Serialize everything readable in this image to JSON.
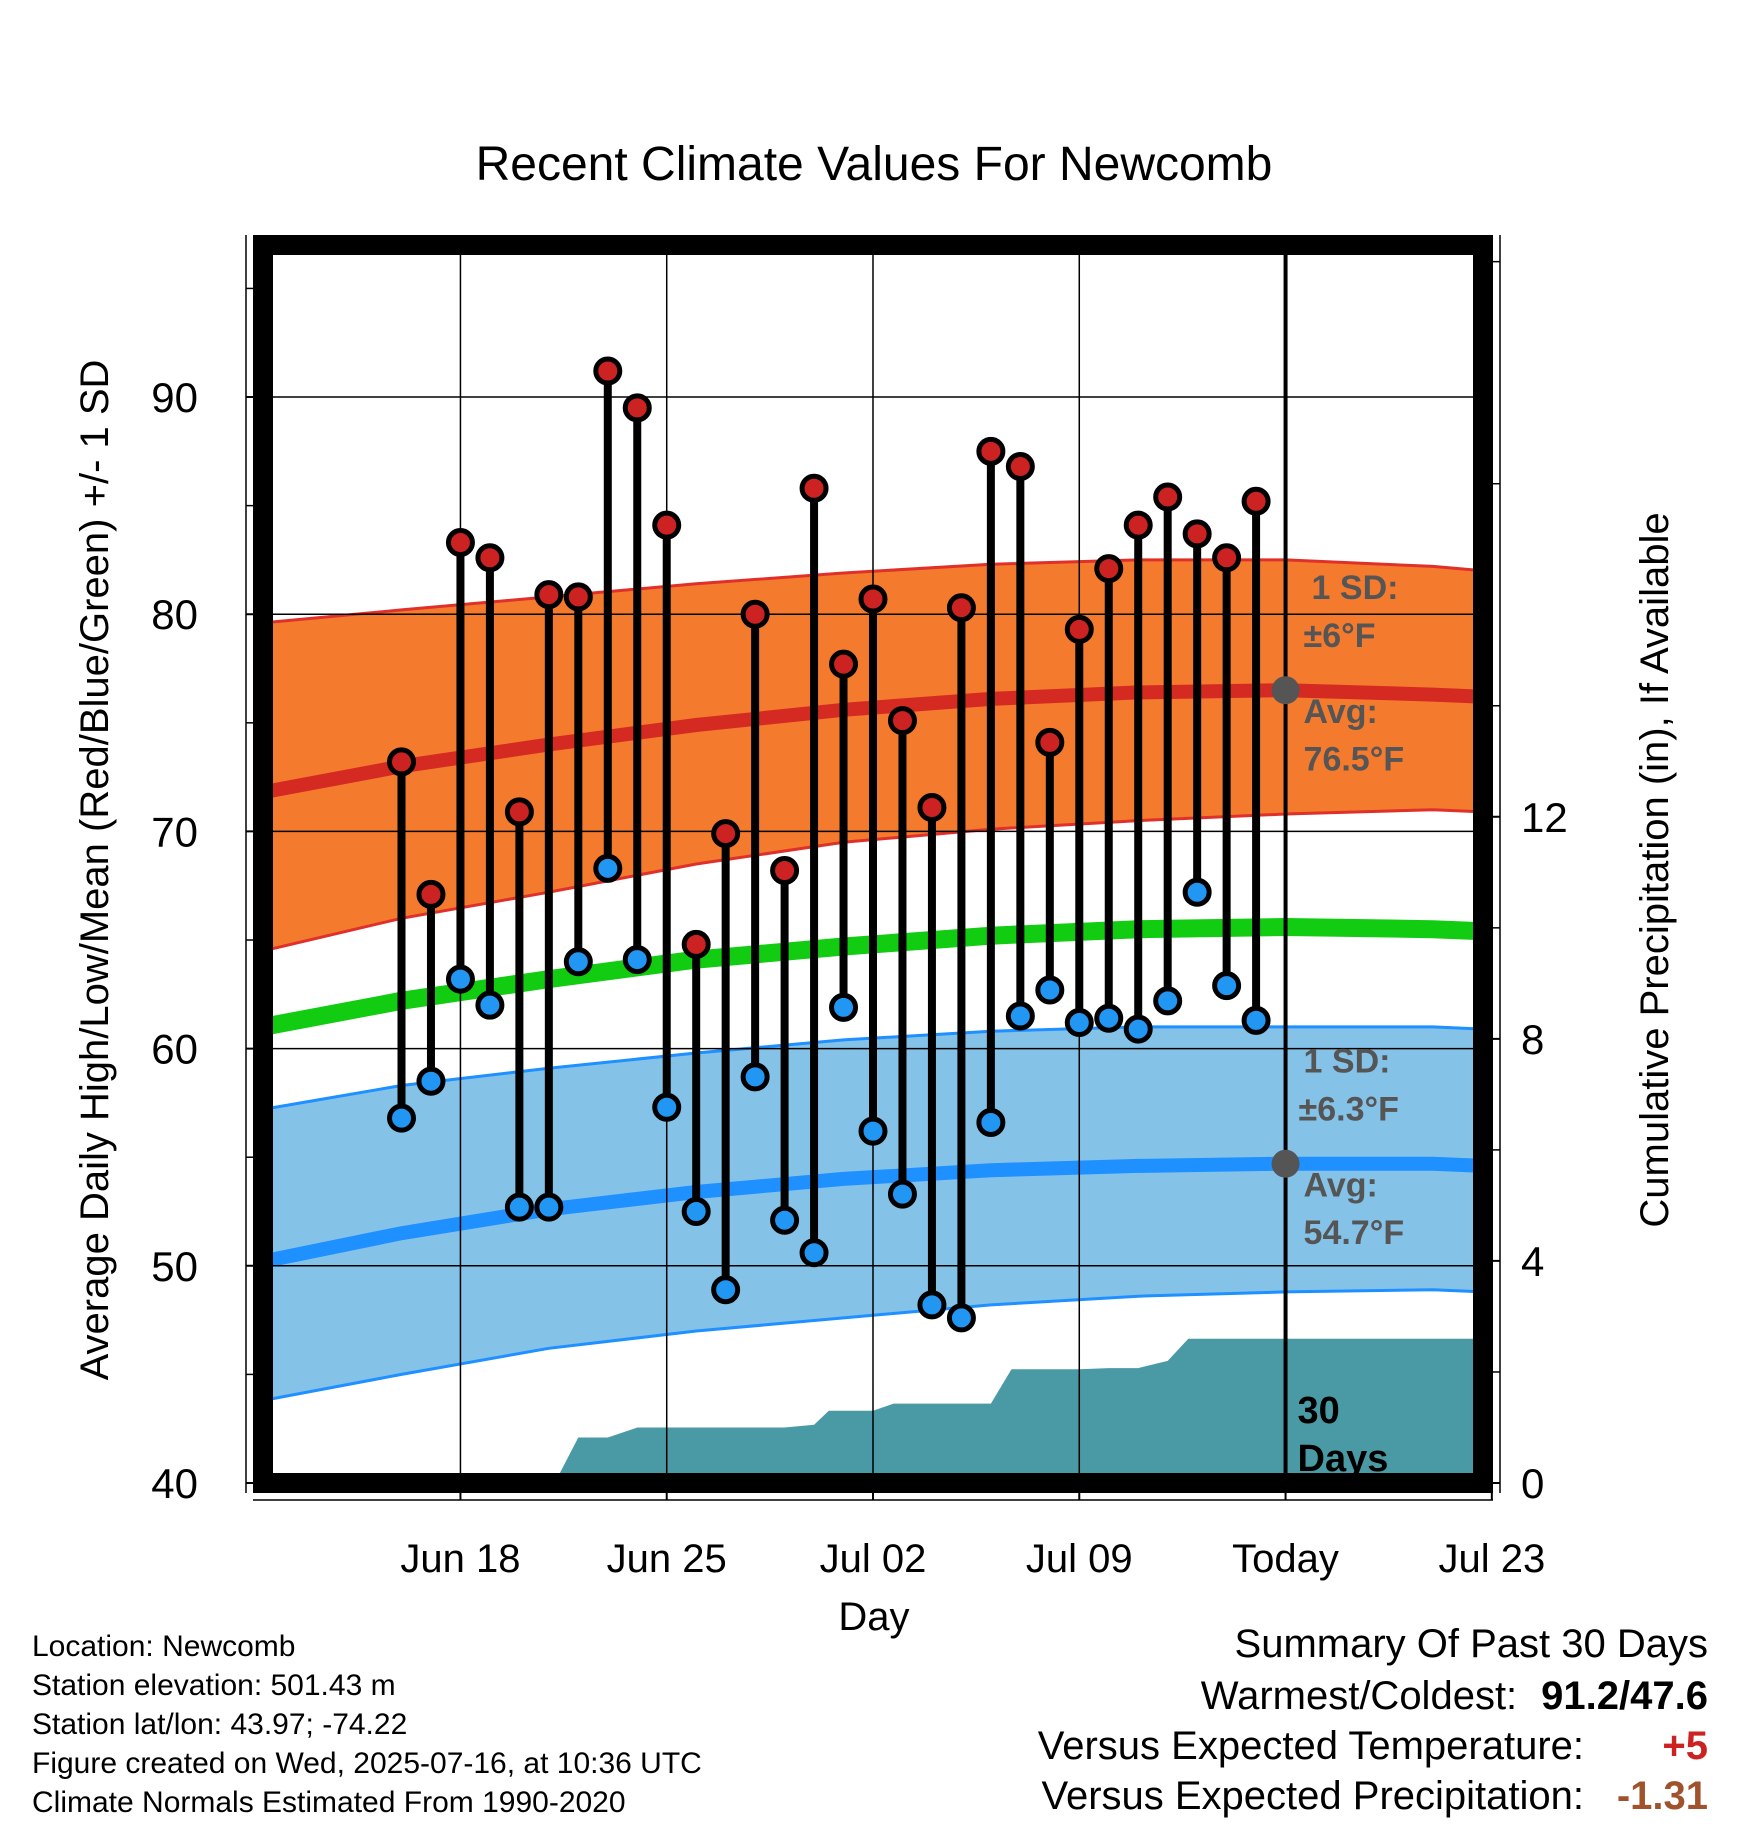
{
  "chart_data": {
    "type": "line",
    "title": "Recent Climate Values For Newcomb",
    "xlabel": "Day",
    "ylabel": "Average Daily High/Low/Mean (Red/Blue/Green) +/- 1 SD",
    "y2label": "Cumulative Precipitation (in), If Available",
    "ylim": [
      40,
      97
    ],
    "y2lim": [
      0,
      22.3
    ],
    "xlim": [
      -34.7,
      6.7
    ],
    "yticks": [
      "40",
      "50",
      "60",
      "70",
      "80",
      "90"
    ],
    "y2ticks": [
      "0",
      "4",
      "8",
      "12"
    ],
    "xticks": [
      {
        "label": "Jun 18",
        "offset": -28
      },
      {
        "label": "Jun 25",
        "offset": -21
      },
      {
        "label": "Jul 02",
        "offset": -14
      },
      {
        "label": "Jul 09",
        "offset": -7
      },
      {
        "label": "Today",
        "offset": 0
      },
      {
        "label": "Jul 23",
        "offset": 7
      }
    ],
    "today_marker": {
      "label_line1": "30",
      "label_line2": "Days"
    },
    "normals": {
      "x_offsets": [
        -34.7,
        -30,
        -25,
        -20,
        -15,
        -10,
        -5,
        0,
        5,
        6.7
      ],
      "high_avg": [
        71.8,
        73.0,
        74.0,
        74.9,
        75.6,
        76.1,
        76.4,
        76.5,
        76.3,
        76.2
      ],
      "high_upper": [
        79.6,
        80.2,
        80.8,
        81.4,
        81.9,
        82.3,
        82.5,
        82.5,
        82.2,
        82.0
      ],
      "high_lower": [
        64.5,
        66.0,
        67.2,
        68.5,
        69.5,
        70.1,
        70.5,
        70.8,
        71.0,
        70.9
      ],
      "mean_avg": [
        61.0,
        62.2,
        63.2,
        64.1,
        64.7,
        65.2,
        65.5,
        65.6,
        65.5,
        65.4
      ],
      "low_avg": [
        50.2,
        51.5,
        52.6,
        53.4,
        54.0,
        54.4,
        54.6,
        54.7,
        54.7,
        54.6
      ],
      "low_upper": [
        57.2,
        58.3,
        59.1,
        59.8,
        60.4,
        60.8,
        61.0,
        61.0,
        61.0,
        60.9
      ],
      "low_lower": [
        43.8,
        45.0,
        46.2,
        47.0,
        47.6,
        48.2,
        48.6,
        48.8,
        48.9,
        48.8
      ]
    },
    "high_annotation": {
      "sd_label": "1 SD:",
      "sd_value": "±6°F",
      "avg_label": "Avg:",
      "avg_value": "76.5°F",
      "avg": 76.5
    },
    "low_annotation": {
      "sd_label": "1 SD:",
      "sd_value": "±6.3°F",
      "avg_label": "Avg:",
      "avg_value": "54.7°F",
      "avg": 54.7
    },
    "observed": {
      "x_offsets": [
        -30,
        -29,
        -28,
        -27,
        -26,
        -25,
        -24,
        -23,
        -22,
        -21,
        -20,
        -19,
        -18,
        -17,
        -16,
        -15,
        -14,
        -13,
        -12,
        -11,
        -10,
        -9,
        -8,
        -7,
        -6,
        -5,
        -4,
        -3,
        -2,
        -1
      ],
      "highs": [
        73.2,
        67.1,
        83.3,
        82.6,
        70.9,
        80.9,
        80.8,
        91.2,
        89.5,
        84.1,
        64.8,
        69.9,
        80.0,
        68.2,
        85.8,
        77.7,
        80.7,
        75.1,
        71.1,
        80.3,
        87.5,
        86.8,
        74.1,
        79.3,
        82.1,
        84.1,
        85.4,
        83.7,
        82.6,
        85.2
      ],
      "lows": [
        56.8,
        58.5,
        63.2,
        62.0,
        52.7,
        52.7,
        64.0,
        68.3,
        64.1,
        57.3,
        52.5,
        48.9,
        58.7,
        52.1,
        50.6,
        61.9,
        56.2,
        53.3,
        48.2,
        47.6,
        56.6,
        61.5,
        62.7,
        61.2,
        61.4,
        60.9,
        62.2,
        67.2,
        62.9,
        61.3
      ]
    },
    "precip": {
      "x_offsets": [
        -24.8,
        -24,
        -23,
        -22,
        -21,
        -20,
        -19,
        -18,
        -17,
        -16,
        -15.5,
        -15,
        -14,
        -13.3,
        -13,
        -12,
        -11,
        -10,
        -9.3,
        -9,
        -8,
        -7,
        -6,
        -5,
        -4,
        -3.3,
        -3,
        -2,
        -1,
        0,
        6.7
      ],
      "cumulative": [
        0,
        0.82,
        0.82,
        1.0,
        1.0,
        1.0,
        1.0,
        1.0,
        1.0,
        1.05,
        1.3,
        1.3,
        1.3,
        1.43,
        1.43,
        1.43,
        1.43,
        1.43,
        2.05,
        2.05,
        2.05,
        2.05,
        2.07,
        2.07,
        2.2,
        2.6,
        2.6,
        2.6,
        2.6,
        2.6,
        2.6
      ]
    }
  },
  "footer": {
    "location": "Location: Newcomb",
    "elevation": "Station elevation: 501.43 m",
    "latlon": "Station lat/lon: 43.97; -74.22",
    "created": "Figure created on Wed, 2025-07-16, at 10:36 UTC",
    "normals": "Climate Normals Estimated From 1990-2020"
  },
  "summary": {
    "title": "Summary Of Past 30 Days",
    "warm_cold_label": "Warmest/Coldest:",
    "warm_cold_value": "91.2/47.6",
    "temp_label": "Versus Expected Temperature:",
    "temp_value": "+5",
    "precip_label": "Versus Expected Precipitation:",
    "precip_value": "-1.31"
  },
  "colors": {
    "high_band": "#F47A2E",
    "high_line": "#D42A22",
    "high_band_edge": "#E0302A",
    "mean_line": "#11CC11",
    "low_band": "#85C2E8",
    "low_line": "#1E90FF",
    "low_band_edge": "#1E90FF",
    "precip_fill": "#4A9AA5",
    "high_dot": "#CC2222",
    "low_dot": "#2196F3",
    "annot_text": "#555555",
    "temp_diff": "#CC2222",
    "precip_diff": "#A0522D"
  }
}
